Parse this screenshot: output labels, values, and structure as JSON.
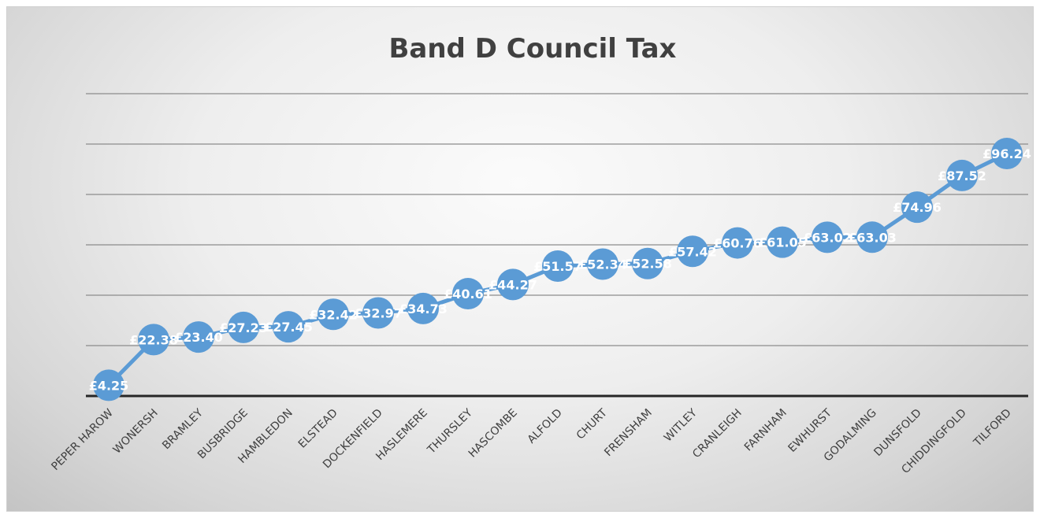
{
  "chart_data": {
    "type": "line",
    "title": "Band D Council Tax",
    "xlabel": "",
    "ylabel": "",
    "categories": [
      "PEPER HAROW",
      "WONERSH",
      "BRAMLEY",
      "BUSBRIDGE",
      "HAMBLEDON",
      "ELSTEAD",
      "DOCKENFIELD",
      "HASLEMERE",
      "THURSLEY",
      "HASCOMBE",
      "ALFOLD",
      "CHURT",
      "FRENSHAM",
      "WITLEY",
      "CRANLEIGH",
      "FARNHAM",
      "EWHURST",
      "GODALMING",
      "DUNSFOLD",
      "CHIDDINGFOLD",
      "TILFORD"
    ],
    "values": [
      4.25,
      22.38,
      23.4,
      27.23,
      27.45,
      32.42,
      32.97,
      34.73,
      40.61,
      44.27,
      51.57,
      52.34,
      52.58,
      57.42,
      60.76,
      61.05,
      63.02,
      63.03,
      74.96,
      87.52,
      96.24
    ],
    "data_labels": [
      "£4.25",
      "£22.38",
      "£23.40",
      "£27.23",
      "£27.45",
      "£32.42",
      "£32.97",
      "£34.73",
      "£40.61",
      "£44.27",
      "£51.57",
      "£52.34",
      "£52.58",
      "£57.42",
      "£60.76",
      "£61.05",
      "£63.02",
      "£63.03",
      "£74.96",
      "£87.52",
      "£96.24"
    ],
    "ylim": [
      0,
      120
    ],
    "grid": true,
    "legend": "none",
    "colors": {
      "series": "#5b9bd5",
      "grid": "#8c8c8c",
      "axis": "#262626",
      "title": "#404040",
      "label": "#ffffff"
    }
  }
}
